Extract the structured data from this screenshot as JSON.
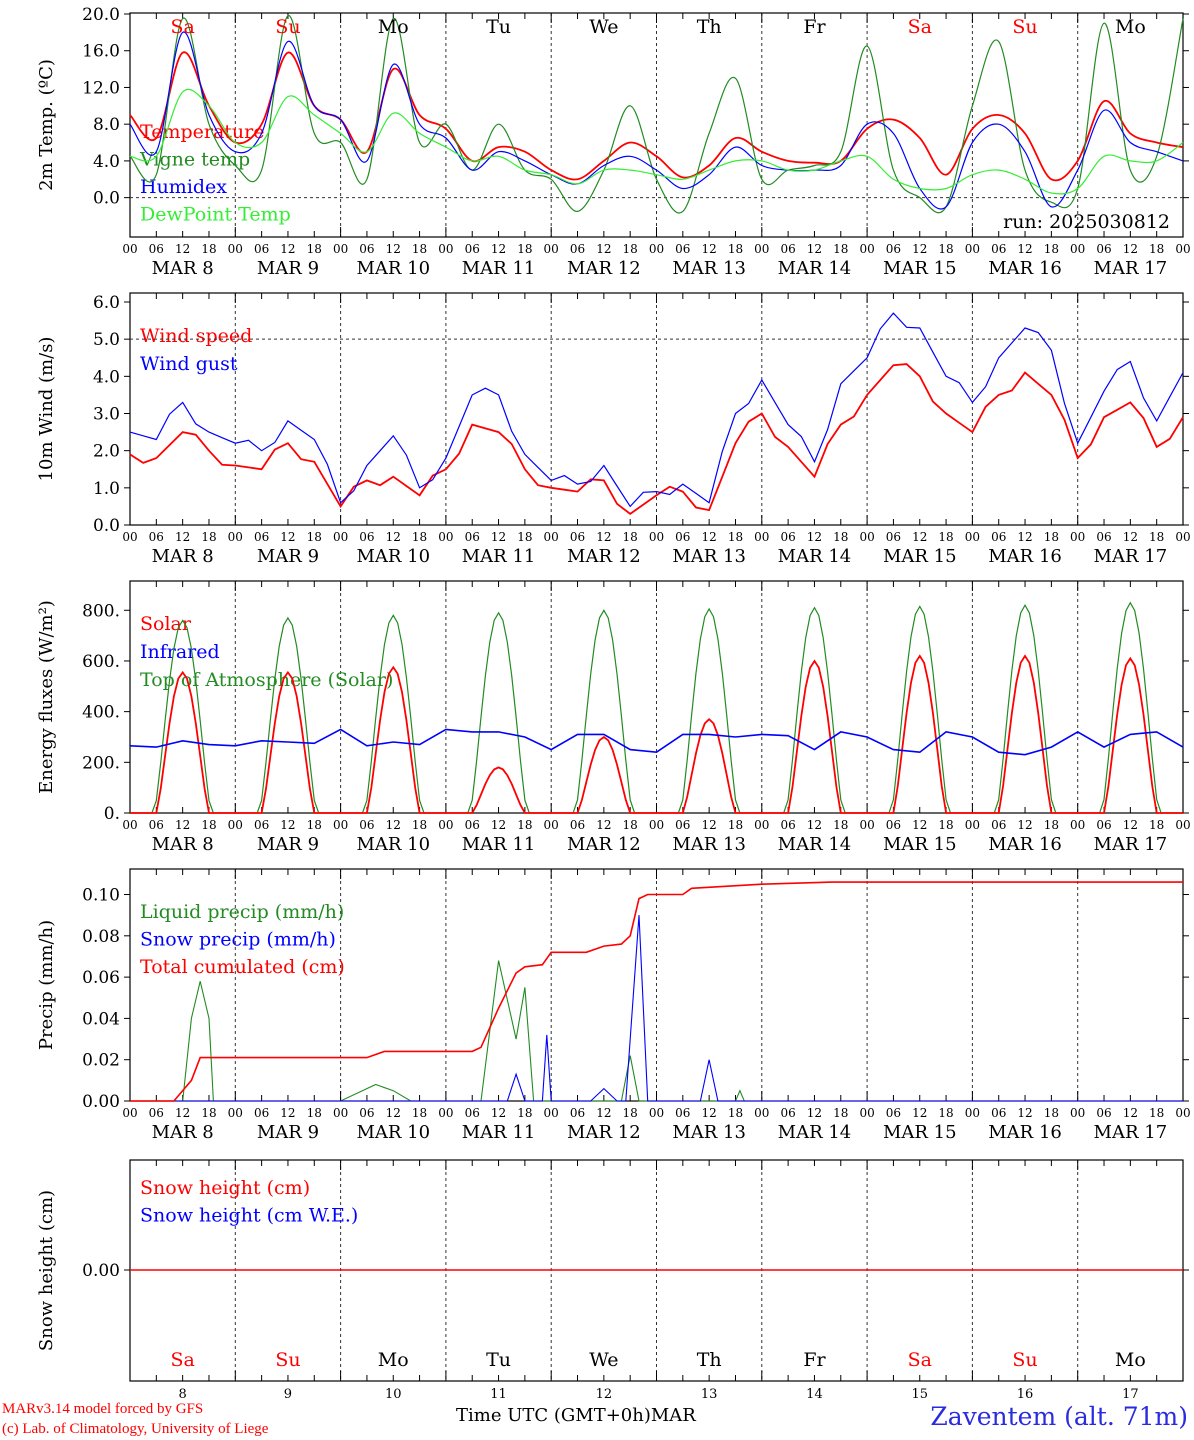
{
  "chart_data": [
    {
      "type": "line",
      "ylabel": "2m Temp. (ºC)",
      "ylim": [
        -2,
        20
      ],
      "yticks": [
        "20.0",
        "16.0",
        "12.0",
        "8.0",
        "4.0",
        "0.0"
      ],
      "annotation": "run: 2025030812",
      "x_hours": [
        0,
        6,
        12,
        18,
        24,
        30,
        36,
        42,
        48,
        54,
        60,
        66,
        72,
        78,
        84,
        90,
        96,
        102,
        108,
        114,
        120,
        126,
        132,
        138,
        144,
        150,
        156,
        162,
        168,
        174,
        180,
        186,
        192,
        198,
        204,
        210,
        216,
        222,
        228,
        234,
        240
      ],
      "series": [
        {
          "name": "Temperature",
          "color": "#ff0000",
          "values": [
            9,
            6.5,
            15.8,
            10,
            6,
            8,
            15.8,
            10,
            8.5,
            5,
            14,
            9,
            7.5,
            4,
            5.5,
            5,
            3,
            2,
            4,
            6,
            4.5,
            2.2,
            3.5,
            6.5,
            5,
            4,
            3.8,
            4,
            7.5,
            8.5,
            6.5,
            2.5,
            7.5,
            9,
            7,
            2,
            4,
            10.5,
            7,
            6,
            5.5
          ]
        },
        {
          "name": "Vigne temp",
          "color": "#228b22",
          "values": [
            4.5,
            2.5,
            19.5,
            8,
            3.5,
            3,
            19.8,
            7,
            6,
            2,
            19.5,
            6,
            8,
            3,
            8,
            3,
            2,
            -1.5,
            3,
            10,
            2,
            -1.5,
            7,
            13,
            2,
            3,
            3.5,
            5,
            16.5,
            3,
            0,
            -1,
            10,
            17,
            3,
            -0.5,
            1,
            19,
            3,
            4.5,
            19.5
          ]
        },
        {
          "name": "Humidex",
          "color": "#0000ff",
          "values": [
            8,
            5,
            18,
            9,
            5,
            7,
            17,
            10,
            8.5,
            4,
            14.5,
            8,
            6.5,
            3,
            5,
            4,
            2.5,
            1.5,
            3.5,
            4.5,
            3,
            1,
            2.5,
            5.5,
            3.5,
            3,
            3,
            3.5,
            8,
            7,
            1,
            -1,
            6,
            8,
            5,
            -1,
            3,
            9.5,
            6,
            5,
            4
          ]
        },
        {
          "name": "DewPoint Temp",
          "color": "#33ee33",
          "values": [
            4.5,
            4.5,
            11.5,
            10,
            6,
            6,
            11,
            9,
            7,
            5,
            9.2,
            7,
            5.5,
            4,
            4.5,
            3,
            2.5,
            1.5,
            3,
            3,
            2.5,
            2,
            3,
            4,
            4,
            3,
            3,
            4,
            4.5,
            2,
            1,
            1,
            2.5,
            3,
            2,
            0.5,
            1,
            4.5,
            4,
            4,
            6
          ]
        }
      ]
    },
    {
      "type": "line",
      "ylabel": "10m Wind (m/s)",
      "ylim": [
        0,
        6
      ],
      "yticks": [
        "6.0",
        "5.0",
        "4.0",
        "3.0",
        "2.0",
        "1.0",
        "0.0"
      ],
      "x_hours": [
        0,
        6,
        12,
        18,
        24,
        30,
        36,
        42,
        48,
        54,
        60,
        66,
        72,
        78,
        84,
        90,
        96,
        102,
        108,
        114,
        120,
        126,
        132,
        138,
        144,
        150,
        156,
        162,
        168,
        174,
        180,
        186,
        192,
        198,
        204,
        210,
        216,
        222,
        228,
        234,
        240
      ],
      "series": [
        {
          "name": "Wind speed",
          "color": "#ff0000",
          "values": [
            1.9,
            1.8,
            2.5,
            2,
            1.6,
            1.5,
            2.2,
            1.7,
            0.5,
            1.2,
            1.3,
            0.8,
            1.5,
            2.7,
            2.5,
            1.5,
            1,
            0.9,
            1.2,
            0.3,
            0.8,
            0.9,
            0.4,
            2.2,
            3,
            2.1,
            1.3,
            2.7,
            3.5,
            4.3,
            4,
            3,
            2.5,
            3.5,
            4.1,
            3.5,
            1.8,
            2.9,
            3.3,
            2.1,
            2.9
          ]
        },
        {
          "name": "Wind gust",
          "color": "#0000ff",
          "values": [
            2.5,
            2.3,
            3.3,
            2.5,
            2.2,
            2,
            2.8,
            2.3,
            0.6,
            1.6,
            2.4,
            1,
            1.8,
            3.5,
            3.5,
            1.9,
            1.2,
            1.1,
            1.6,
            0.5,
            0.9,
            1.1,
            0.6,
            3,
            3.9,
            2.7,
            1.7,
            3.8,
            4.5,
            5.7,
            5.3,
            4,
            3.3,
            4.5,
            5.3,
            4.7,
            2.2,
            3.6,
            4.4,
            2.8,
            4.1
          ]
        }
      ]
    },
    {
      "type": "line",
      "ylabel": "Energy fluxes (W/m²)",
      "ylim": [
        0,
        880
      ],
      "yticks": [
        "800.",
        "600.",
        "400.",
        "200.",
        "0."
      ],
      "daily_peaks": {
        "Solar": [
          555,
          555,
          575,
          180,
          300,
          370,
          600,
          620,
          620,
          610
        ],
        "Top of Atmosphere (Solar)": [
          760,
          770,
          780,
          790,
          800,
          805,
          810,
          815,
          820,
          830
        ]
      },
      "series": [
        {
          "name": "Solar",
          "color": "#ff0000"
        },
        {
          "name": "Infrared",
          "color": "#0000ff",
          "values": [
            265,
            260,
            285,
            270,
            265,
            285,
            280,
            275,
            330,
            265,
            280,
            270,
            330,
            320,
            320,
            300,
            250,
            310,
            310,
            250,
            240,
            310,
            310,
            300,
            310,
            305,
            250,
            320,
            300,
            250,
            240,
            320,
            300,
            240,
            230,
            260,
            320,
            260,
            310,
            320,
            260
          ]
        },
        {
          "name": "Top of Atmosphere (Solar)",
          "color": "#228b22"
        }
      ]
    },
    {
      "type": "line",
      "ylabel": "Precip (mm/h)",
      "ylim": [
        0,
        0.108
      ],
      "yticks": [
        "0.10",
        "0.08",
        "0.06",
        "0.04",
        "0.02",
        "0.00"
      ],
      "series": [
        {
          "name": "Liquid precip (mm/h)",
          "color": "#228b22",
          "points": [
            [
              0,
              0
            ],
            [
              12,
              0
            ],
            [
              14,
              0.04
            ],
            [
              16,
              0.058
            ],
            [
              18,
              0.04
            ],
            [
              19,
              0
            ],
            [
              48,
              0
            ],
            [
              56,
              0.008
            ],
            [
              60,
              0.005
            ],
            [
              64,
              0
            ],
            [
              80,
              0
            ],
            [
              84,
              0.068
            ],
            [
              88,
              0.03
            ],
            [
              90,
              0.055
            ],
            [
              92,
              0
            ],
            [
              112,
              0
            ],
            [
              114,
              0.022
            ],
            [
              116,
              0
            ],
            [
              138,
              0
            ],
            [
              139,
              0.005
            ],
            [
              140,
              0
            ],
            [
              240,
              0
            ]
          ]
        },
        {
          "name": "Snow precip (mm/h)",
          "color": "#0000ff",
          "points": [
            [
              0,
              0
            ],
            [
              86,
              0
            ],
            [
              88,
              0.013
            ],
            [
              90,
              0
            ],
            [
              94,
              0
            ],
            [
              95,
              0.032
            ],
            [
              96,
              0
            ],
            [
              105,
              0
            ],
            [
              108,
              0.006
            ],
            [
              111,
              0
            ],
            [
              113,
              0
            ],
            [
              116,
              0.09
            ],
            [
              118,
              0
            ],
            [
              130,
              0
            ],
            [
              132,
              0.02
            ],
            [
              134,
              0
            ],
            [
              240,
              0
            ]
          ]
        },
        {
          "name": "Total cumulated (cm)",
          "color": "#ff0000",
          "points": [
            [
              0,
              0
            ],
            [
              10,
              0
            ],
            [
              14,
              0.01
            ],
            [
              16,
              0.021
            ],
            [
              54,
              0.021
            ],
            [
              58,
              0.024
            ],
            [
              78,
              0.024
            ],
            [
              80,
              0.026
            ],
            [
              84,
              0.045
            ],
            [
              88,
              0.062
            ],
            [
              90,
              0.065
            ],
            [
              94,
              0.066
            ],
            [
              96,
              0.072
            ],
            [
              104,
              0.072
            ],
            [
              108,
              0.075
            ],
            [
              112,
              0.076
            ],
            [
              114,
              0.08
            ],
            [
              116,
              0.098
            ],
            [
              118,
              0.1
            ],
            [
              126,
              0.1
            ],
            [
              128,
              0.103
            ],
            [
              144,
              0.105
            ],
            [
              160,
              0.106
            ],
            [
              240,
              0.106
            ]
          ]
        }
      ]
    },
    {
      "type": "line",
      "ylabel": "Snow height (cm)",
      "ylim": [
        -1,
        1
      ],
      "yticks": [
        "0.00"
      ],
      "series": [
        {
          "name": "Snow height (cm)",
          "color": "#ff0000",
          "values": [
            0,
            0
          ]
        },
        {
          "name": "Snow height (cm W.E.)",
          "color": "#0000ff",
          "values": [
            0,
            0
          ]
        }
      ]
    }
  ],
  "axis": {
    "hour_ticks": [
      "00",
      "06",
      "12",
      "18"
    ],
    "dates": [
      "MAR  8",
      "MAR  9",
      "MAR 10",
      "MAR 11",
      "MAR 12",
      "MAR 13",
      "MAR 14",
      "MAR 15",
      "MAR 16",
      "MAR 17"
    ],
    "weekdays": [
      "Sa",
      "Su",
      "Mo",
      "Tu",
      "We",
      "Th",
      "Fr",
      "Sa",
      "Su",
      "Mo"
    ],
    "weekend_flags": [
      true,
      true,
      false,
      false,
      false,
      false,
      false,
      true,
      true,
      false
    ],
    "day_numbers": [
      "8",
      "9",
      "10",
      "11",
      "12",
      "13",
      "14",
      "15",
      "16",
      "17"
    ]
  },
  "footer": {
    "model_line": "MARv3.14 model forced by GFS",
    "credit_line": "(c) Lab. of Climatology, University of Liege",
    "xlabel": "Time UTC (GMT+0h)",
    "month": "MAR",
    "station": "Zaventem (alt. 71m)"
  },
  "colors": {
    "weekend": "#ff0000",
    "weekday": "#000000",
    "station": "#2a2adf"
  }
}
